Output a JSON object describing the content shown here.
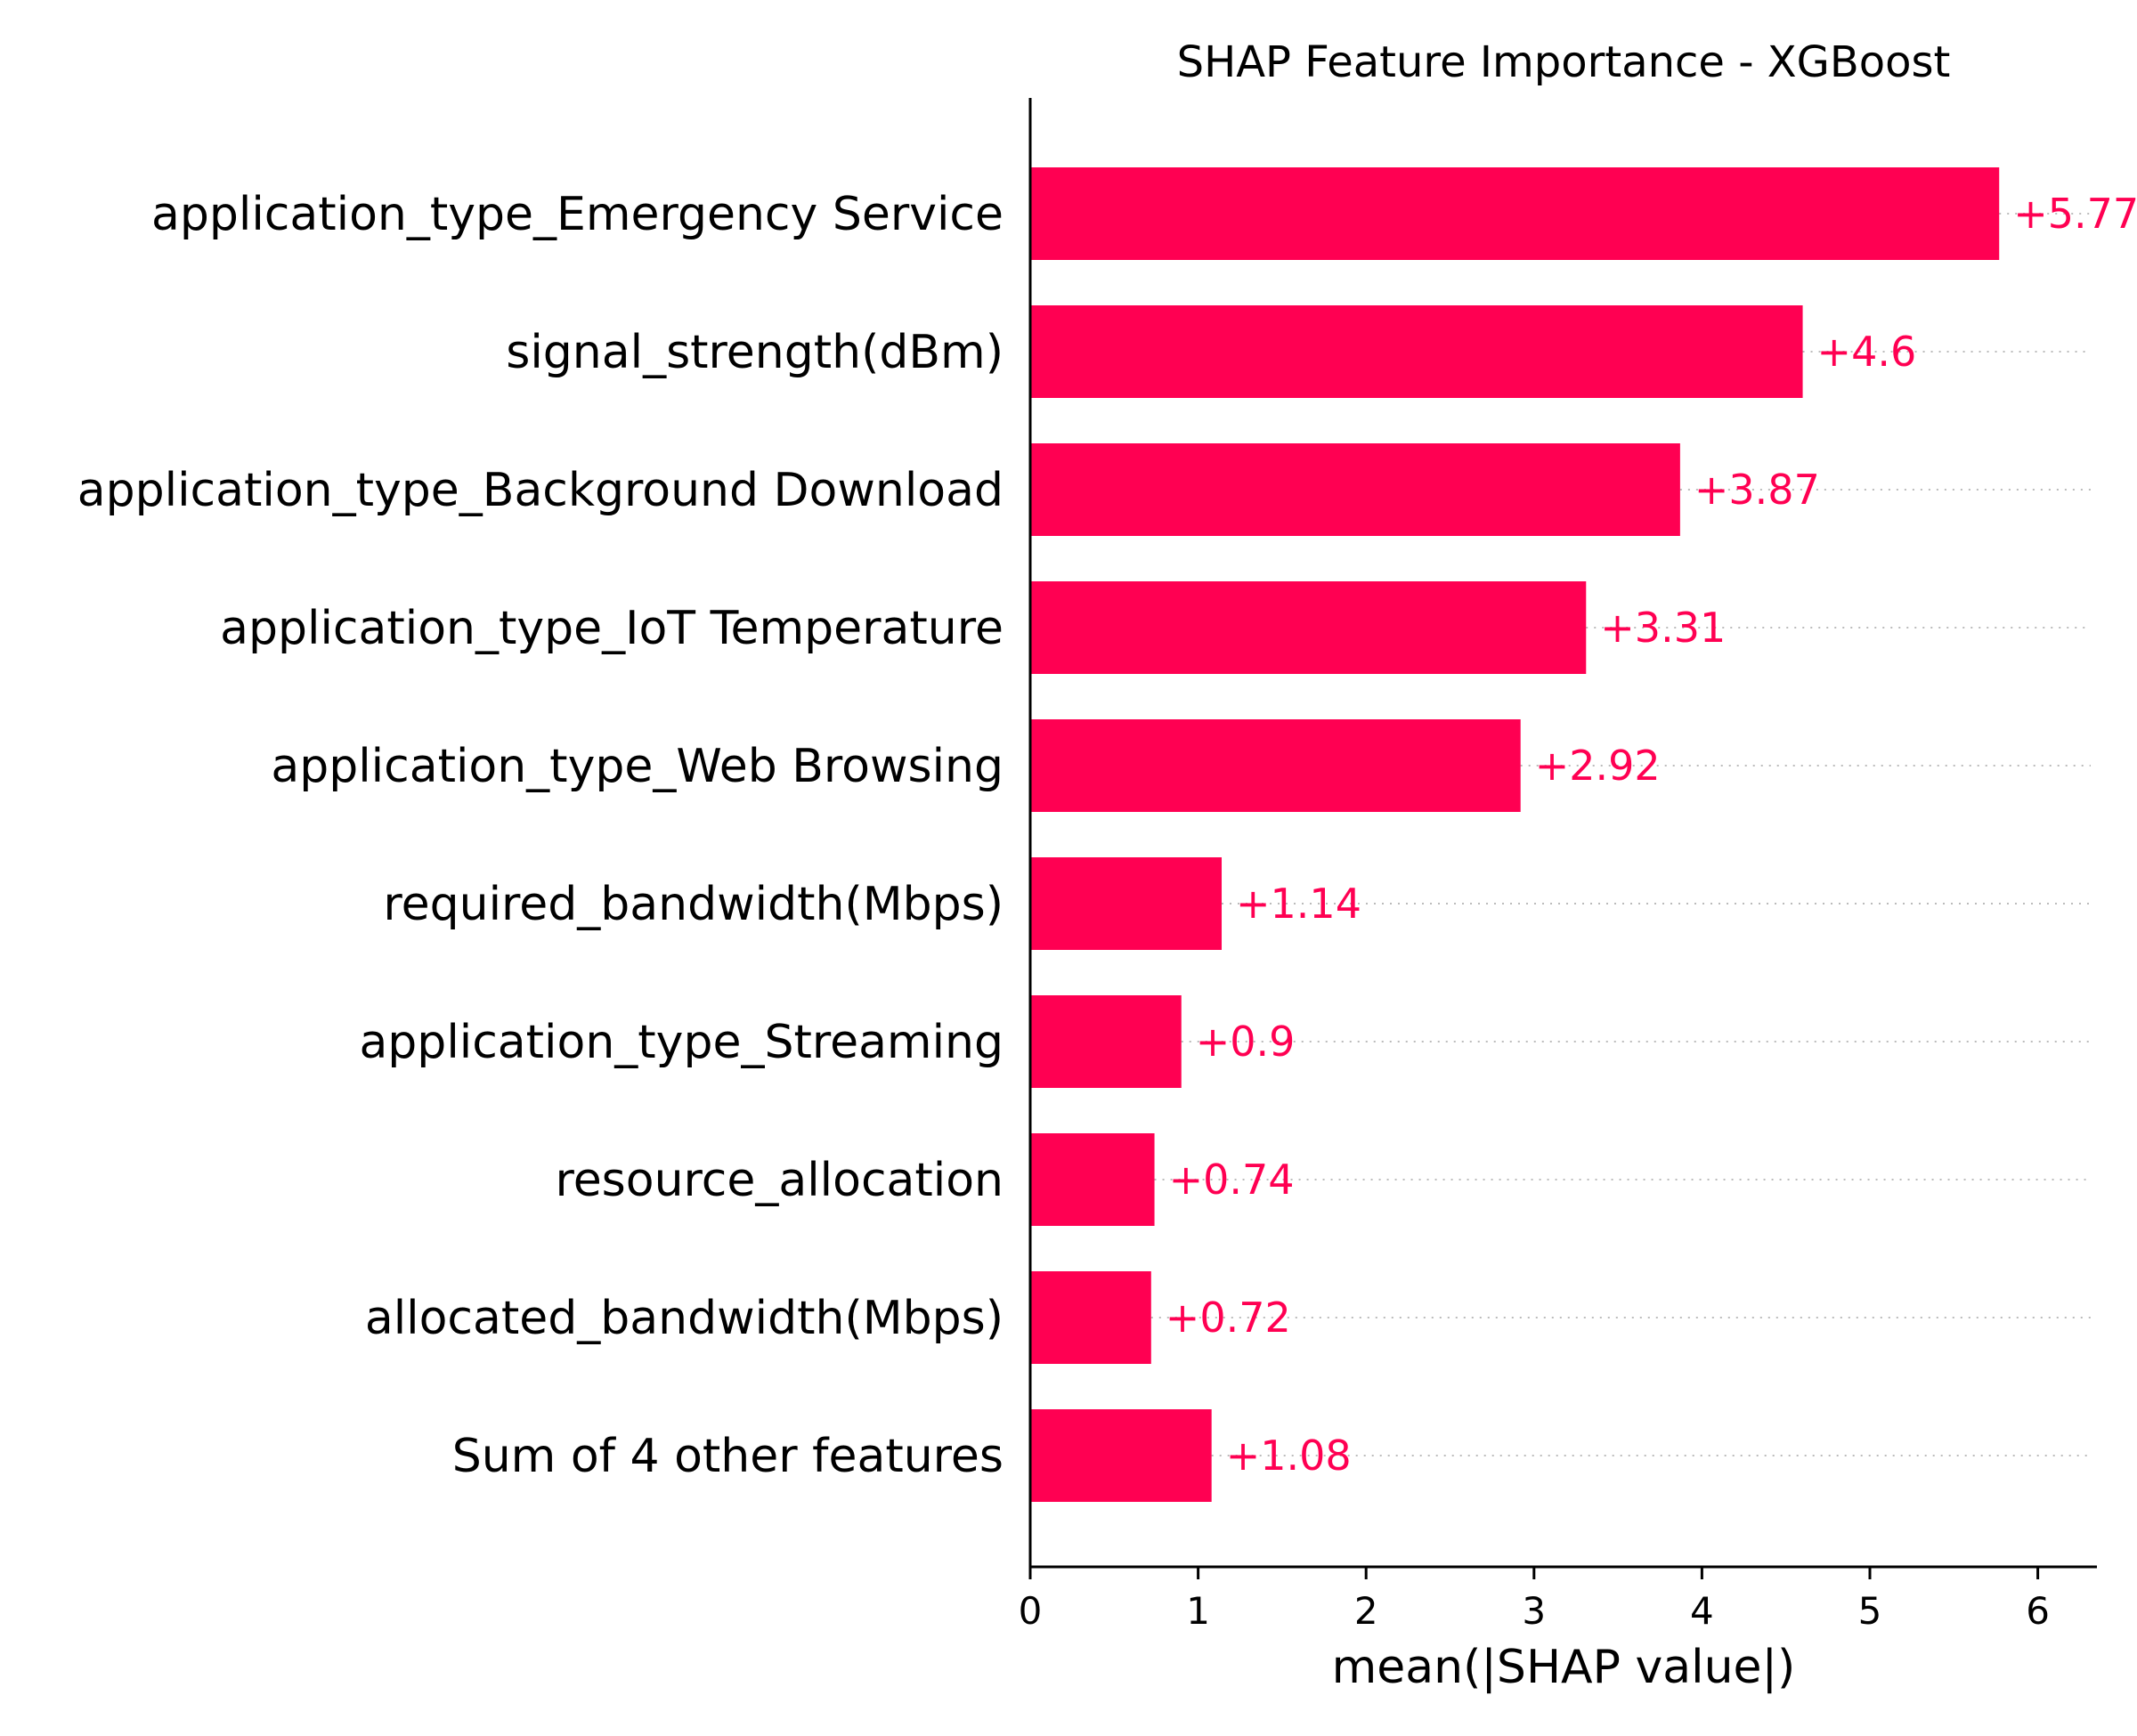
{
  "chart_data": {
    "type": "bar",
    "orientation": "horizontal",
    "title": "SHAP Feature Importance - XGBoost",
    "xlabel": "mean(|SHAP value|)",
    "ylabel": "",
    "categories": [
      "application_type_Emergency Service",
      "signal_strength(dBm)",
      "application_type_Background Download",
      "application_type_IoT Temperature",
      "application_type_Web Browsing",
      "required_bandwidth(Mbps)",
      "application_type_Streaming",
      "resource_allocation",
      "allocated_bandwidth(Mbps)",
      "Sum of 4 other features"
    ],
    "values": [
      5.77,
      4.6,
      3.87,
      3.31,
      2.92,
      1.14,
      0.9,
      0.74,
      0.72,
      1.08
    ],
    "data_labels": [
      "+5.77",
      "+4.6",
      "+3.87",
      "+3.31",
      "+2.92",
      "+1.14",
      "+0.9",
      "+0.74",
      "+0.72",
      "+1.08"
    ],
    "xticks": [
      "0",
      "1",
      "2",
      "3",
      "4",
      "5",
      "6"
    ],
    "xlim": [
      0,
      6.36
    ],
    "bar_color": "#ff0052",
    "label_color": "#ff0052",
    "grid": false,
    "legend": "none"
  }
}
